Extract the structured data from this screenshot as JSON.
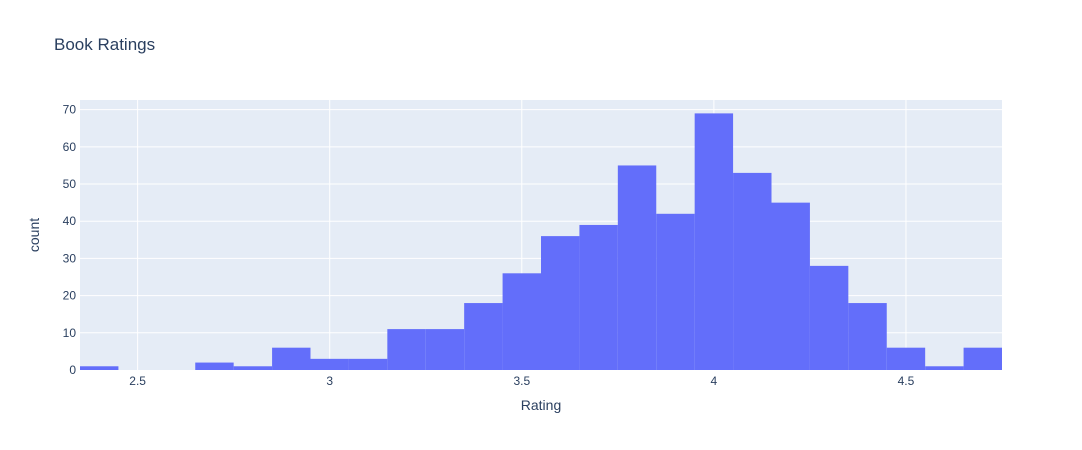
{
  "chart_data": {
    "type": "bar",
    "title": "Book Ratings",
    "xlabel": "Rating",
    "ylabel": "count",
    "xlim": [
      2.35,
      4.75
    ],
    "ylim": [
      0,
      72.6
    ],
    "bin_width": 0.1,
    "bin_starts": [
      2.35,
      2.45,
      2.55,
      2.65,
      2.75,
      2.85,
      2.95,
      3.05,
      3.15,
      3.25,
      3.35,
      3.45,
      3.55,
      3.65,
      3.75,
      3.85,
      3.95,
      4.05,
      4.15,
      4.25,
      4.35,
      4.45,
      4.55,
      4.65
    ],
    "values": [
      1,
      0,
      0,
      2,
      1,
      6,
      3,
      3,
      11,
      11,
      18,
      26,
      36,
      39,
      55,
      42,
      69,
      53,
      45,
      28,
      18,
      6,
      1,
      6
    ],
    "x_ticks": [
      "2.5",
      "3",
      "3.5",
      "4",
      "4.5"
    ],
    "y_ticks": [
      "0",
      "10",
      "20",
      "30",
      "40",
      "50",
      "60",
      "70"
    ],
    "bar_color": "#636efa",
    "plot_background": "#e5ecf6",
    "grid": true,
    "legend": "none"
  }
}
